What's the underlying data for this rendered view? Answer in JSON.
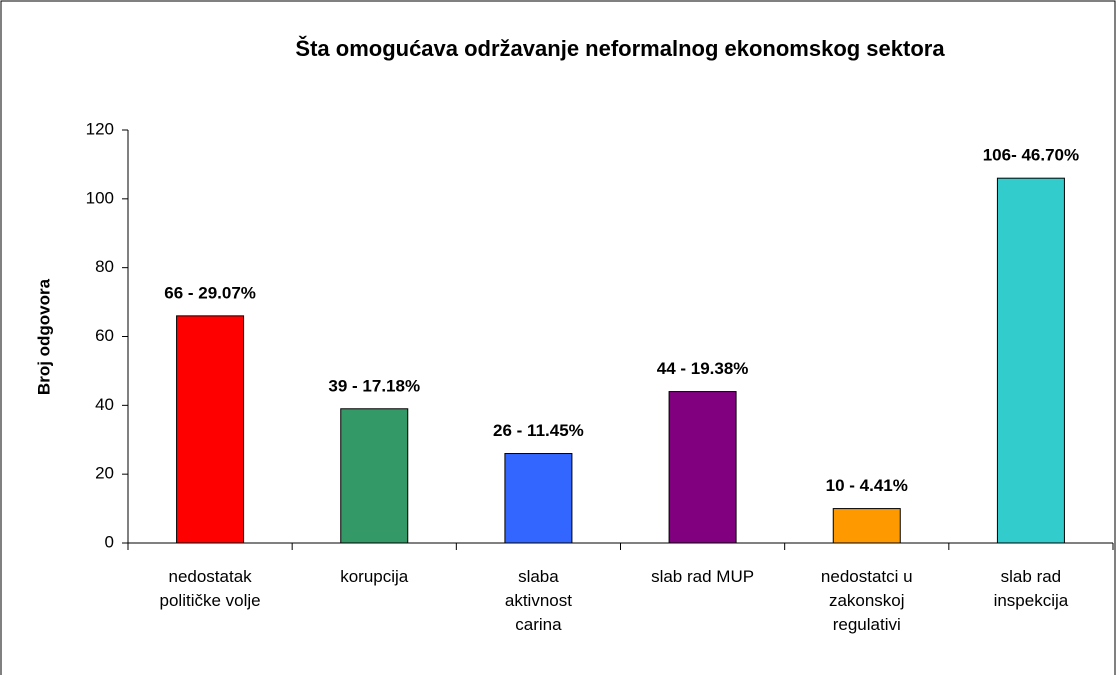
{
  "chart_data": {
    "type": "bar",
    "title": "Šta omogućava održavanje neformalnog ekonomskog sektora",
    "y_label": "Broj odgovora",
    "categories": [
      "nedostatak\npolitičke volje",
      "korupcija",
      "slaba\naktivnost\ncarina",
      "slab rad MUP",
      "nedostatci u\nzakonskoj\nregulativi",
      "slab rad\ninspekcija"
    ],
    "values": [
      66,
      39,
      26,
      44,
      10,
      106
    ],
    "value_labels": [
      "66 - 29.07%",
      "39 - 17.18%",
      "26 - 11.45%",
      "44 - 19.38%",
      "10 - 4.41%",
      "106- 46.70%"
    ],
    "colors": [
      "#ff0000",
      "#339966",
      "#3366ff",
      "#800080",
      "#ff9900",
      "#33cccc"
    ],
    "ylim": [
      0,
      120
    ],
    "yticks": [
      0,
      20,
      40,
      60,
      80,
      100,
      120
    ],
    "grid": false
  }
}
